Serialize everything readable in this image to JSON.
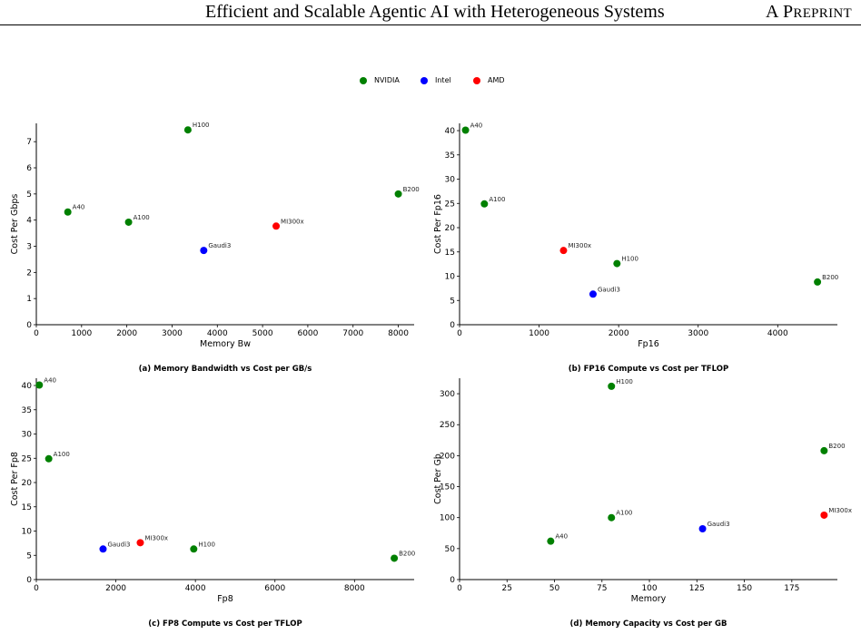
{
  "header": {
    "title": "Efficient and Scalable Agentic AI with Heterogeneous Systems",
    "right": "A PREPRINT"
  },
  "legend": [
    {
      "label": "NVIDIA",
      "color": "#008000"
    },
    {
      "label": "Intel",
      "color": "#0000ff"
    },
    {
      "label": "AMD",
      "color": "#ff0000"
    }
  ],
  "colors": {
    "NVIDIA": "#008000",
    "Intel": "#0000ff",
    "AMD": "#ff0000"
  },
  "captions": [
    "(a) Memory Bandwidth vs Cost per GB/s",
    "(b) FP16 Compute vs Cost per TFLOP",
    "(c) FP8 Compute vs Cost per TFLOP",
    "(d) Memory Capacity vs Cost per GB"
  ],
  "chart_data": [
    {
      "type": "scatter",
      "xlabel": "Memory Bw",
      "ylabel": "Cost Per Gbps",
      "xlim": [
        0,
        8350
      ],
      "ylim": [
        0,
        7.7
      ],
      "xticks": [
        0,
        1000,
        2000,
        3000,
        4000,
        5000,
        6000,
        7000,
        8000
      ],
      "yticks": [
        0,
        1,
        2,
        3,
        4,
        5,
        6,
        7
      ],
      "points": [
        {
          "label": "H100",
          "x": 3350,
          "y": 7.45,
          "vendor": "NVIDIA"
        },
        {
          "label": "A40",
          "x": 696,
          "y": 4.31,
          "vendor": "NVIDIA"
        },
        {
          "label": "A100",
          "x": 2039,
          "y": 3.92,
          "vendor": "NVIDIA"
        },
        {
          "label": "B200",
          "x": 8000,
          "y": 5.0,
          "vendor": "NVIDIA"
        },
        {
          "label": "Gaudi3",
          "x": 3700,
          "y": 2.84,
          "vendor": "Intel"
        },
        {
          "label": "MI300x",
          "x": 5300,
          "y": 3.77,
          "vendor": "AMD"
        }
      ]
    },
    {
      "type": "scatter",
      "xlabel": "Fp16",
      "ylabel": "Cost Per Fp16",
      "xlim": [
        0,
        4750
      ],
      "ylim": [
        0,
        41.5
      ],
      "xticks": [
        0,
        1000,
        2000,
        3000,
        4000
      ],
      "yticks": [
        0,
        5,
        10,
        15,
        20,
        25,
        30,
        35,
        40
      ],
      "points": [
        {
          "label": "A40",
          "x": 75,
          "y": 40.1,
          "vendor": "NVIDIA"
        },
        {
          "label": "A100",
          "x": 312,
          "y": 24.9,
          "vendor": "NVIDIA"
        },
        {
          "label": "H100",
          "x": 1979,
          "y": 12.6,
          "vendor": "NVIDIA"
        },
        {
          "label": "B200",
          "x": 4500,
          "y": 8.8,
          "vendor": "NVIDIA"
        },
        {
          "label": "Gaudi3",
          "x": 1678,
          "y": 6.3,
          "vendor": "Intel"
        },
        {
          "label": "MI300x",
          "x": 1307,
          "y": 15.3,
          "vendor": "AMD"
        }
      ]
    },
    {
      "type": "scatter",
      "xlabel": "Fp8",
      "ylabel": "Cost Per Fp8",
      "xlim": [
        0,
        9500
      ],
      "ylim": [
        0,
        41.5
      ],
      "xticks": [
        0,
        2000,
        4000,
        6000,
        8000
      ],
      "yticks": [
        0,
        5,
        10,
        15,
        20,
        25,
        30,
        35,
        40
      ],
      "points": [
        {
          "label": "A40",
          "x": 75,
          "y": 40.1,
          "vendor": "NVIDIA"
        },
        {
          "label": "A100",
          "x": 312,
          "y": 24.9,
          "vendor": "NVIDIA"
        },
        {
          "label": "H100",
          "x": 3958,
          "y": 6.3,
          "vendor": "NVIDIA"
        },
        {
          "label": "B200",
          "x": 9000,
          "y": 4.4,
          "vendor": "NVIDIA"
        },
        {
          "label": "Gaudi3",
          "x": 1678,
          "y": 6.3,
          "vendor": "Intel"
        },
        {
          "label": "MI300x",
          "x": 2614,
          "y": 7.6,
          "vendor": "AMD"
        }
      ]
    },
    {
      "type": "scatter",
      "xlabel": "Memory",
      "ylabel": "Cost Per Gb",
      "xlim": [
        0,
        199
      ],
      "ylim": [
        0,
        325
      ],
      "xticks": [
        0,
        25,
        50,
        75,
        100,
        125,
        150,
        175
      ],
      "yticks": [
        0,
        50,
        100,
        150,
        200,
        250,
        300
      ],
      "points": [
        {
          "label": "H100",
          "x": 80,
          "y": 312,
          "vendor": "NVIDIA"
        },
        {
          "label": "B200",
          "x": 192,
          "y": 208,
          "vendor": "NVIDIA"
        },
        {
          "label": "A100",
          "x": 80,
          "y": 100,
          "vendor": "NVIDIA"
        },
        {
          "label": "A40",
          "x": 48,
          "y": 62,
          "vendor": "NVIDIA"
        },
        {
          "label": "Gaudi3",
          "x": 128,
          "y": 82,
          "vendor": "Intel"
        },
        {
          "label": "MI300x",
          "x": 192,
          "y": 104,
          "vendor": "AMD"
        }
      ]
    }
  ]
}
